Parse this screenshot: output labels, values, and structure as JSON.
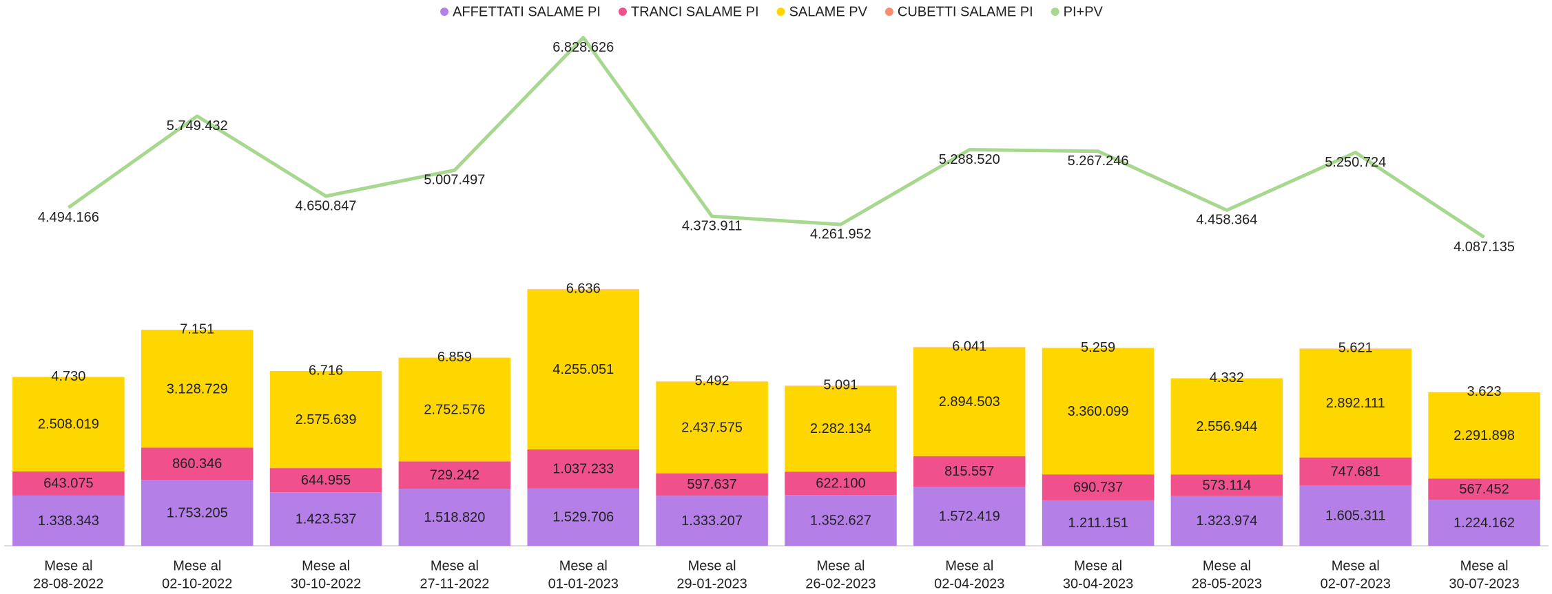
{
  "chart_data": {
    "type": "bar-line",
    "categories": [
      [
        "Mese al",
        "28-08-2022"
      ],
      [
        "Mese al",
        "02-10-2022"
      ],
      [
        "Mese al",
        "30-10-2022"
      ],
      [
        "Mese al",
        "27-11-2022"
      ],
      [
        "Mese al",
        "01-01-2023"
      ],
      [
        "Mese al",
        "29-01-2023"
      ],
      [
        "Mese al",
        "26-02-2023"
      ],
      [
        "Mese al",
        "02-04-2023"
      ],
      [
        "Mese al",
        "30-04-2023"
      ],
      [
        "Mese al",
        "28-05-2023"
      ],
      [
        "Mese al",
        "02-07-2023"
      ],
      [
        "Mese al",
        "30-07-2023"
      ]
    ],
    "series": [
      {
        "name": "AFFETTATI SALAME PI",
        "color": "#b57fe8",
        "type": "bar",
        "values": [
          1338343,
          1753205,
          1423537,
          1518820,
          1529706,
          1333207,
          1352627,
          1572419,
          1211151,
          1323974,
          1605311,
          1224162
        ],
        "value_labels": [
          "1.338.343",
          "1.753.205",
          "1.423.537",
          "1.518.820",
          "1.529.706",
          "1.333.207",
          "1.352.627",
          "1.572.419",
          "1.211.151",
          "1.323.974",
          "1.605.311",
          "1.224.162"
        ]
      },
      {
        "name": "TRANCI SALAME PI",
        "color": "#f0508c",
        "type": "bar",
        "values": [
          643075,
          860346,
          644955,
          729242,
          1037233,
          597637,
          622100,
          815557,
          690737,
          573114,
          747681,
          567452
        ],
        "value_labels": [
          "643.075",
          "860.346",
          "644.955",
          "729.242",
          "1.037.233",
          "597.637",
          "622.100",
          "815.557",
          "690.737",
          "573.114",
          "747.681",
          "567.452"
        ]
      },
      {
        "name": "SALAME PV",
        "color": "#ffd700",
        "type": "bar",
        "values": [
          2508019,
          3128729,
          2575639,
          2752576,
          4255051,
          2437575,
          2282134,
          2894503,
          3360099,
          2556944,
          2892111,
          2291898
        ],
        "value_labels": [
          "2.508.019",
          "3.128.729",
          "2.575.639",
          "2.752.576",
          "4.255.051",
          "2.437.575",
          "2.282.134",
          "2.894.503",
          "3.360.099",
          "2.556.944",
          "2.892.111",
          "2.291.898"
        ]
      },
      {
        "name": "CUBETTI SALAME PI",
        "color": "#f88c6c",
        "type": "bar",
        "values": [
          4730,
          7151,
          6716,
          6859,
          6636,
          5492,
          5091,
          6041,
          5259,
          4332,
          5621,
          3623
        ],
        "value_labels": [
          "4.730",
          "7.151",
          "6.716",
          "6.859",
          "6.636",
          "5.492",
          "5.091",
          "6.041",
          "5.259",
          "4.332",
          "5.621",
          "3.623"
        ]
      },
      {
        "name": "PI+PV",
        "color": "#a8d890",
        "type": "line",
        "axis": "y2",
        "values": [
          4494166,
          5749432,
          4650847,
          5007497,
          6828626,
          4373911,
          4261952,
          5288520,
          5267246,
          4458364,
          5250724,
          4087135
        ],
        "value_labels": [
          "4.494.166",
          "5.749.432",
          "4.650.847",
          "5.007.497",
          "6.828.626",
          "4.373.911",
          "4.261.952",
          "5.288.520",
          "5.267.246",
          "4.458.364",
          "5.250.724",
          "4.087.135"
        ]
      }
    ],
    "ylim": [
      0,
      14000000
    ],
    "y2lim": [
      -150000,
      7070000
    ]
  }
}
